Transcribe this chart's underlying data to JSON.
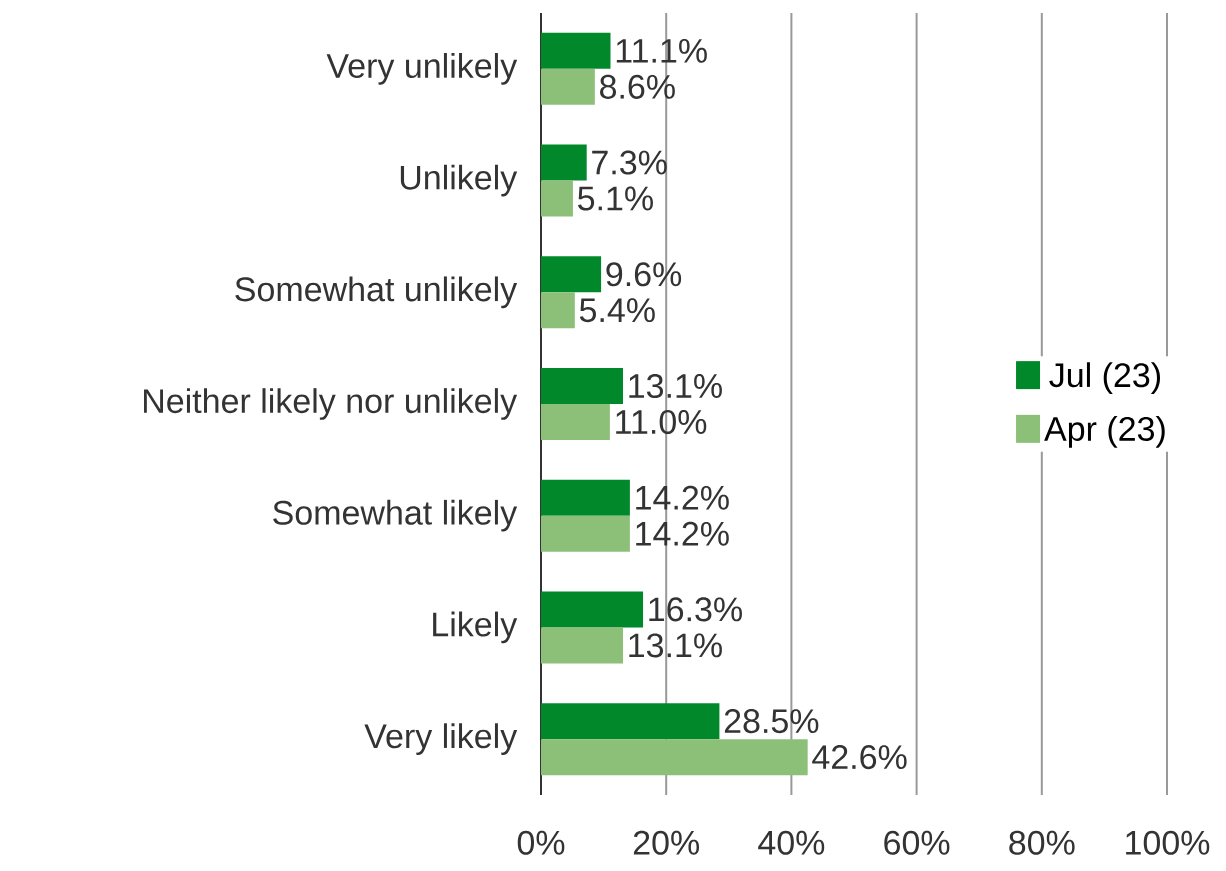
{
  "chart_data": {
    "type": "bar",
    "orientation": "horizontal",
    "categories": [
      "Very unlikely",
      "Unlikely",
      "Somewhat unlikely",
      "Neither likely nor unlikely",
      "Somewhat likely",
      "Likely",
      "Very likely"
    ],
    "series": [
      {
        "name": "Jul (23)",
        "color": "#00882b",
        "values": [
          11.1,
          7.3,
          9.6,
          13.1,
          14.2,
          16.3,
          28.5
        ],
        "value_labels": [
          "11.1%",
          "7.3%",
          "9.6%",
          "13.1%",
          "14.2%",
          "16.3%",
          "28.5%"
        ]
      },
      {
        "name": "Apr (23)",
        "color": "#8cc078",
        "values": [
          8.6,
          5.1,
          5.4,
          11.0,
          14.2,
          13.1,
          42.6
        ],
        "value_labels": [
          "8.6%",
          "5.1%",
          "5.4%",
          "11.0%",
          "14.2%",
          "13.1%",
          "42.6%"
        ]
      }
    ],
    "xlim": [
      0,
      100
    ],
    "xticks": [
      {
        "value": 0,
        "label": "0%"
      },
      {
        "value": 20,
        "label": "20%"
      },
      {
        "value": 40,
        "label": "40%"
      },
      {
        "value": 60,
        "label": "60%"
      },
      {
        "value": 80,
        "label": "80%"
      },
      {
        "value": 100,
        "label": "100%"
      }
    ],
    "grid": "x",
    "legend": "right"
  }
}
